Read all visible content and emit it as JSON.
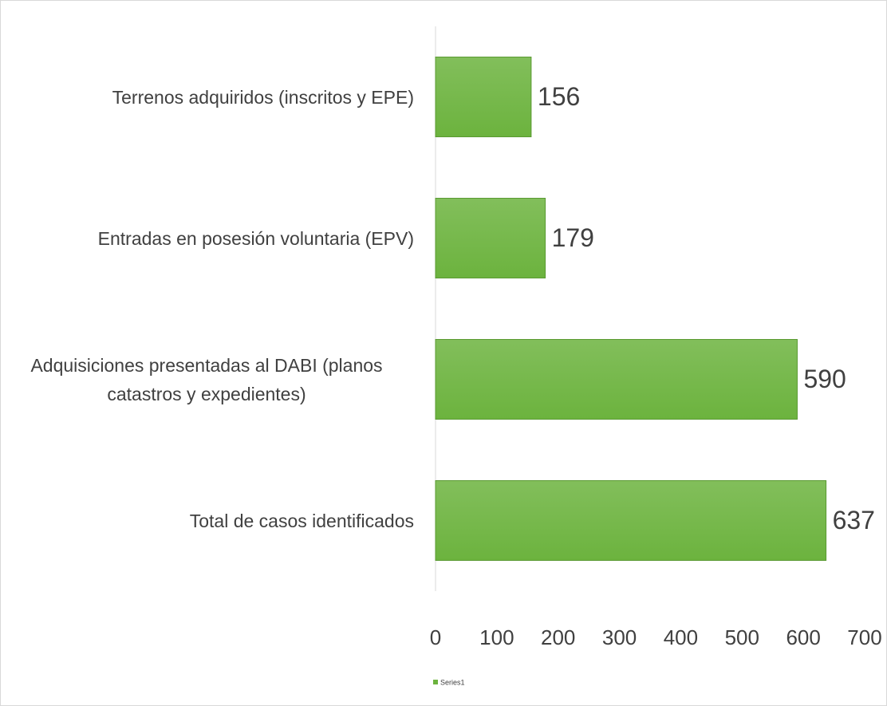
{
  "chart_data": {
    "type": "bar",
    "orientation": "horizontal",
    "categories": [
      "Terrenos adquiridos (inscritos y EPE)",
      "Entradas en posesión voluntaria (EPV)",
      "Adquisiciones presentadas al DABI (planos catastros y expedientes)",
      "Total de casos identificados"
    ],
    "series": [
      {
        "name": "Series1",
        "color": "#6cb33e",
        "values": [
          156,
          179,
          590,
          637
        ]
      }
    ],
    "xlim": [
      0,
      700
    ],
    "xticks": [
      0,
      100,
      200,
      300,
      400,
      500,
      600,
      700
    ],
    "grid": false,
    "legend": "bottom"
  }
}
